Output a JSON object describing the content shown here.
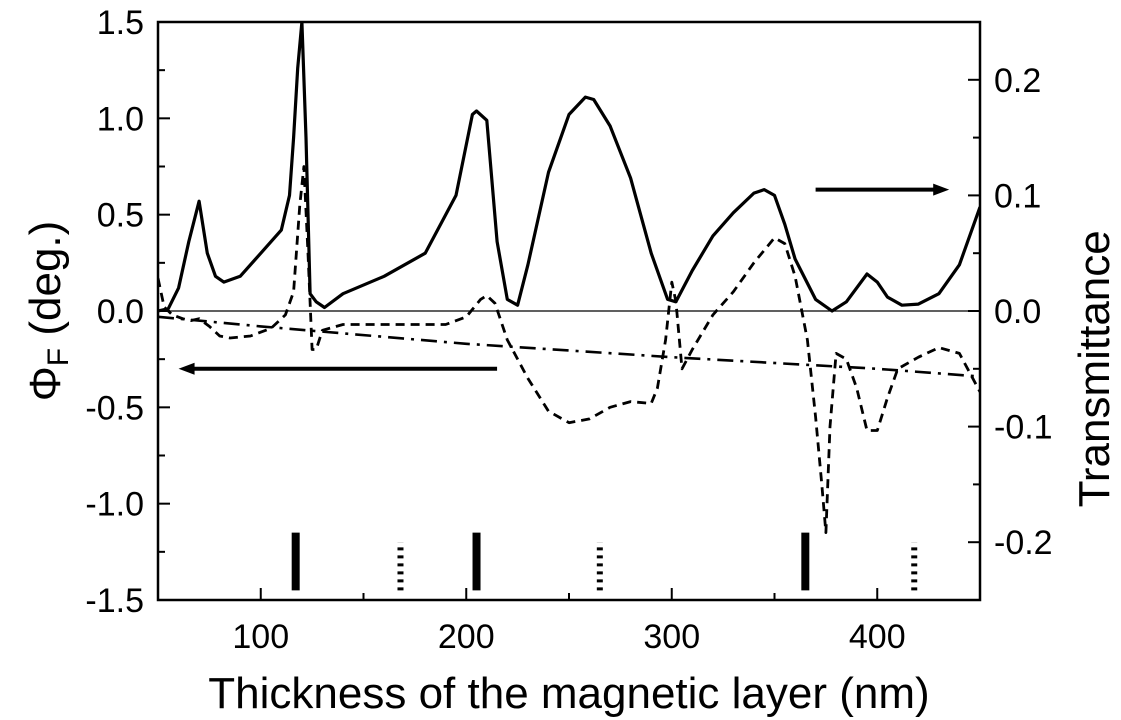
{
  "chart_data": {
    "type": "line",
    "xlabel": "Thickness of the magnetic layer (nm)",
    "ylabel_left": {
      "symbol": "Φ",
      "subscript": "F",
      "unit": " (deg.)"
    },
    "ylabel_right": "Transmittance",
    "xlim": [
      50,
      450
    ],
    "ylim_left": [
      -1.5,
      1.5
    ],
    "ylim_right": [
      -0.25,
      0.25
    ],
    "x_ticks": [
      100,
      200,
      300,
      400
    ],
    "x_tick_labels": [
      "100",
      "200",
      "300",
      "400"
    ],
    "y_left_ticks": [
      -1.5,
      -1.0,
      -0.5,
      0.0,
      0.5,
      1.0,
      1.5
    ],
    "y_left_tick_labels": [
      "-1.5",
      "-1.0",
      "-0.5",
      "0.0",
      "0.5",
      "1.0",
      "1.5"
    ],
    "y_right_ticks": [
      -0.2,
      -0.1,
      0.0,
      0.1,
      0.2
    ],
    "y_right_tick_labels": [
      "-0.2",
      "-0.1",
      "0.0",
      "0.1",
      "0.2"
    ],
    "zero_line": 0.0,
    "grid": false,
    "series": [
      {
        "style": "solid",
        "axis": "right",
        "points": [
          [
            50,
            0.0
          ],
          [
            55,
            0.002
          ],
          [
            60,
            0.02
          ],
          [
            65,
            0.06
          ],
          [
            70,
            0.095
          ],
          [
            74,
            0.05
          ],
          [
            78,
            0.03
          ],
          [
            82,
            0.025
          ],
          [
            90,
            0.03
          ],
          [
            100,
            0.05
          ],
          [
            110,
            0.07
          ],
          [
            114,
            0.1
          ],
          [
            116,
            0.15
          ],
          [
            118,
            0.21
          ],
          [
            120,
            0.25
          ],
          [
            122,
            0.15
          ],
          [
            124,
            0.015
          ],
          [
            127,
            0.008
          ],
          [
            131,
            0.003
          ],
          [
            140,
            0.015
          ],
          [
            160,
            0.03
          ],
          [
            180,
            0.05
          ],
          [
            195,
            0.1
          ],
          [
            203,
            0.17
          ],
          [
            205,
            0.173
          ],
          [
            210,
            0.165
          ],
          [
            215,
            0.06
          ],
          [
            220,
            0.01
          ],
          [
            225,
            0.005
          ],
          [
            230,
            0.04
          ],
          [
            240,
            0.12
          ],
          [
            250,
            0.17
          ],
          [
            258,
            0.185
          ],
          [
            262,
            0.183
          ],
          [
            270,
            0.16
          ],
          [
            280,
            0.115
          ],
          [
            290,
            0.05
          ],
          [
            298,
            0.01
          ],
          [
            302,
            0.008
          ],
          [
            310,
            0.035
          ],
          [
            320,
            0.065
          ],
          [
            330,
            0.085
          ],
          [
            340,
            0.102
          ],
          [
            345,
            0.105
          ],
          [
            350,
            0.1
          ],
          [
            355,
            0.075
          ],
          [
            360,
            0.045
          ],
          [
            370,
            0.01
          ],
          [
            378,
            0.0
          ],
          [
            385,
            0.008
          ],
          [
            395,
            0.032
          ],
          [
            400,
            0.025
          ],
          [
            405,
            0.012
          ],
          [
            412,
            0.005
          ],
          [
            420,
            0.006
          ],
          [
            430,
            0.015
          ],
          [
            440,
            0.04
          ],
          [
            450,
            0.09
          ]
        ]
      },
      {
        "style": "dashed",
        "axis": "left",
        "points": [
          [
            50,
            0.17
          ],
          [
            53,
            0.02
          ],
          [
            57,
            -0.02
          ],
          [
            62,
            -0.04
          ],
          [
            66,
            -0.05
          ],
          [
            70,
            -0.04
          ],
          [
            75,
            -0.08
          ],
          [
            80,
            -0.13
          ],
          [
            85,
            -0.14
          ],
          [
            95,
            -0.13
          ],
          [
            105,
            -0.09
          ],
          [
            112,
            -0.02
          ],
          [
            116,
            0.1
          ],
          [
            119,
            0.55
          ],
          [
            121,
            0.75
          ],
          [
            123,
            0.3
          ],
          [
            125,
            -0.2
          ],
          [
            127,
            -0.2
          ],
          [
            130,
            -0.1
          ],
          [
            140,
            -0.07
          ],
          [
            160,
            -0.07
          ],
          [
            190,
            -0.07
          ],
          [
            200,
            -0.03
          ],
          [
            207,
            0.06
          ],
          [
            210,
            0.08
          ],
          [
            214,
            0.04
          ],
          [
            220,
            -0.15
          ],
          [
            230,
            -0.35
          ],
          [
            240,
            -0.52
          ],
          [
            250,
            -0.58
          ],
          [
            260,
            -0.56
          ],
          [
            270,
            -0.5
          ],
          [
            280,
            -0.47
          ],
          [
            290,
            -0.48
          ],
          [
            293,
            -0.4
          ],
          [
            297,
            -0.15
          ],
          [
            300,
            0.15
          ],
          [
            302,
            0.05
          ],
          [
            305,
            -0.3
          ],
          [
            310,
            -0.2
          ],
          [
            320,
            -0.02
          ],
          [
            330,
            0.1
          ],
          [
            340,
            0.25
          ],
          [
            350,
            0.38
          ],
          [
            355,
            0.35
          ],
          [
            360,
            0.18
          ],
          [
            366,
            -0.15
          ],
          [
            370,
            -0.55
          ],
          [
            373,
            -0.9
          ],
          [
            375,
            -1.15
          ],
          [
            377,
            -0.6
          ],
          [
            380,
            -0.22
          ],
          [
            385,
            -0.25
          ],
          [
            390,
            -0.4
          ],
          [
            395,
            -0.62
          ],
          [
            400,
            -0.62
          ],
          [
            405,
            -0.45
          ],
          [
            410,
            -0.3
          ],
          [
            420,
            -0.24
          ],
          [
            430,
            -0.19
          ],
          [
            440,
            -0.22
          ],
          [
            450,
            -0.42
          ]
        ]
      },
      {
        "style": "dashdot",
        "axis": "left",
        "points": [
          [
            50,
            -0.03
          ],
          [
            100,
            -0.08
          ],
          [
            200,
            -0.17
          ],
          [
            300,
            -0.24
          ],
          [
            400,
            -0.3
          ],
          [
            450,
            -0.34
          ]
        ]
      }
    ],
    "arrows": [
      {
        "from": [
          215,
          -0.3
        ],
        "to": [
          60,
          -0.3
        ],
        "points_to": "left axis"
      },
      {
        "from": [
          370,
          0.63
        ],
        "to": [
          435,
          0.63
        ],
        "points_to": "right axis"
      }
    ],
    "markers": [
      {
        "x": 117,
        "style": "solid",
        "y_range": [
          -1.45,
          -1.15
        ]
      },
      {
        "x": 168,
        "style": "dotted",
        "y_range": [
          -1.45,
          -1.2
        ]
      },
      {
        "x": 205,
        "style": "solid",
        "y_range": [
          -1.45,
          -1.15
        ]
      },
      {
        "x": 265,
        "style": "dotted",
        "y_range": [
          -1.45,
          -1.2
        ]
      },
      {
        "x": 365,
        "style": "solid",
        "y_range": [
          -1.45,
          -1.15
        ]
      },
      {
        "x": 418,
        "style": "dotted",
        "y_range": [
          -1.45,
          -1.2
        ]
      }
    ]
  }
}
